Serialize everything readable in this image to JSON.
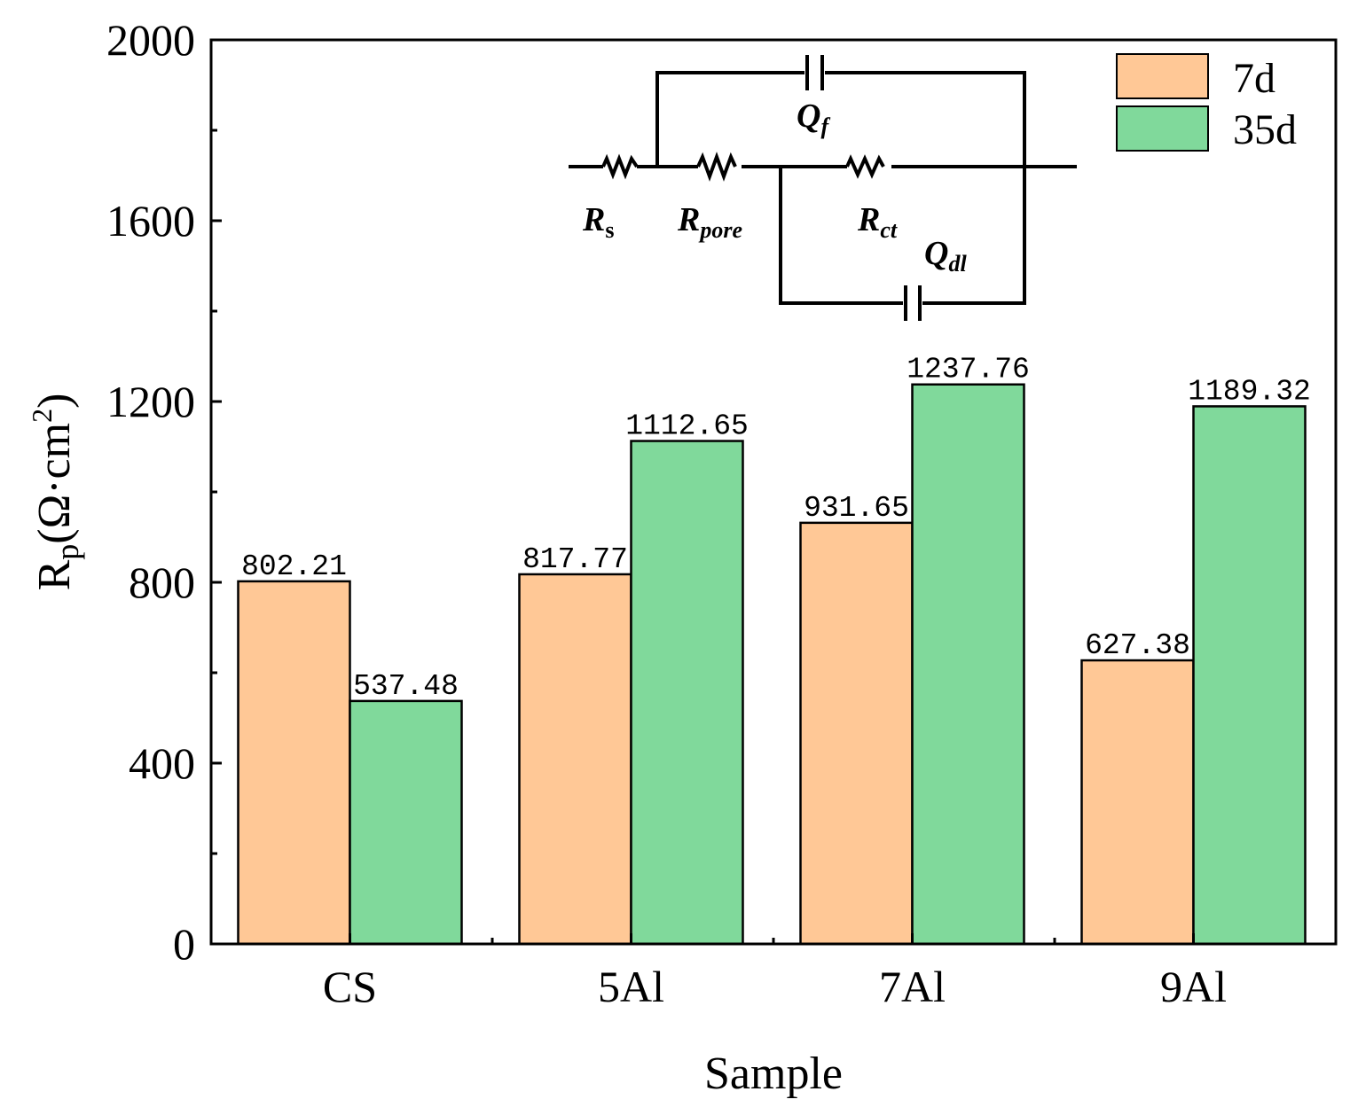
{
  "chart_data": {
    "type": "bar",
    "xlabel": "Sample",
    "ylabel": {
      "main": "R",
      "sub": "p",
      "unit": "(Ω·cm",
      "sup": "2",
      "close": ")"
    },
    "ylim": [
      0,
      2000
    ],
    "yticks": [
      0,
      400,
      800,
      1200,
      1600,
      2000
    ],
    "ytick_labels": [
      "0",
      "400",
      "800",
      "1200",
      "1600",
      "2000"
    ],
    "categories": [
      "CS",
      "5Al",
      "7Al",
      "9Al"
    ],
    "series": [
      {
        "name": "7d",
        "color": "#ffc896",
        "values": [
          802.21,
          817.77,
          931.65,
          627.38
        ],
        "labels": [
          "802.21",
          "817.77",
          "931.65",
          "627.38"
        ]
      },
      {
        "name": "35d",
        "color": "#80d99b",
        "values": [
          537.48,
          1112.65,
          1237.76,
          1189.32
        ],
        "labels": [
          "537.48",
          "1112.65",
          "1237.76",
          "1189.32"
        ]
      }
    ],
    "legend_position": "top-right"
  },
  "circuit": {
    "rs": {
      "main": "R",
      "sub": "s"
    },
    "rpore": {
      "main": "R",
      "sub": "pore"
    },
    "rct": {
      "main": "R",
      "sub": "ct"
    },
    "qf": {
      "main": "Q",
      "sub": "f"
    },
    "qdl": {
      "main": "Q",
      "sub": "dl"
    }
  }
}
